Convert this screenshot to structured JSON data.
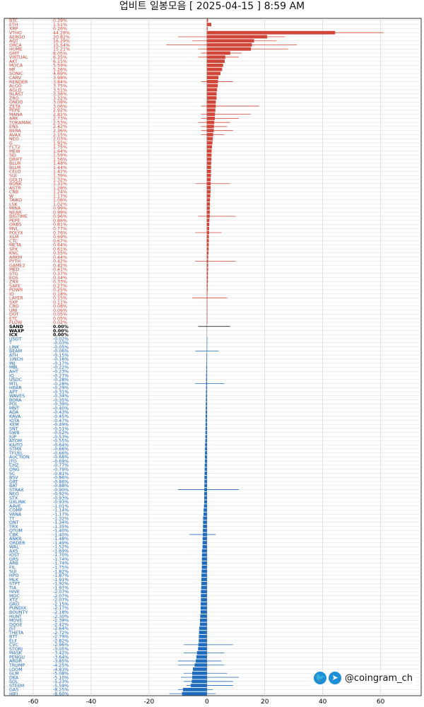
{
  "chart_data": {
    "type": "bar",
    "orientation": "horizontal",
    "title": "업비트 일봉모음 [ 2025-04-15 ]  8:59 AM",
    "xlim": [
      -70,
      74
    ],
    "xticks": [
      -60,
      -40,
      -20,
      0,
      20,
      40,
      60
    ],
    "grid": true,
    "colors": {
      "up": "#d0473a",
      "flat": "#000000",
      "down": "#1f6bbd"
    },
    "rows": [
      {
        "name": "BTC",
        "value": 0.39,
        "label": "0.39%"
      },
      {
        "name": "ETH",
        "value": 1.51,
        "label": "1.51%"
      },
      {
        "name": "XRP",
        "value": 0.26,
        "label": "0.26%"
      },
      {
        "name": "VTHO",
        "value": 44.28,
        "label": "44.28%"
      },
      {
        "name": "AERGO",
        "value": 20.82,
        "label": "20.82%"
      },
      {
        "name": "AQT",
        "value": 16.29,
        "label": "16.29%"
      },
      {
        "name": "ORCA",
        "value": 15.54,
        "label": "15.54%"
      },
      {
        "name": "HUME",
        "value": 15.21,
        "label": "15.21%"
      },
      {
        "name": "GMT",
        "value": 8.05,
        "label": "8.05%"
      },
      {
        "name": "VIRTUAL",
        "value": 6.35,
        "label": "6.35%"
      },
      {
        "name": "AKT",
        "value": 6.15,
        "label": "6.15%"
      },
      {
        "name": "MOCA",
        "value": 5.59,
        "label": "5.59%"
      },
      {
        "name": "MF",
        "value": 5.26,
        "label": "5.26%"
      },
      {
        "name": "SONIC",
        "value": 4.69,
        "label": "4.69%"
      },
      {
        "name": "CARV",
        "value": 3.98,
        "label": "3.98%"
      },
      {
        "name": "RENDER",
        "value": 3.84,
        "label": "3.84%"
      },
      {
        "name": "ALGO",
        "value": 3.75,
        "label": "3.75%"
      },
      {
        "name": "AGLD",
        "value": 3.51,
        "label": "3.51%"
      },
      {
        "name": "BLAST",
        "value": 3.36,
        "label": "3.36%"
      },
      {
        "name": "ZRO",
        "value": 3.32,
        "label": "3.32%"
      },
      {
        "name": "ONDO",
        "value": 3.08,
        "label": "3.08%"
      },
      {
        "name": "ZETA",
        "value": 3.06,
        "label": "3.06%"
      },
      {
        "name": "PEPE",
        "value": 2.92,
        "label": "2.92%"
      },
      {
        "name": "MANA",
        "value": 2.81,
        "label": "2.81%"
      },
      {
        "name": "ARK",
        "value": 2.73,
        "label": "2.73%"
      },
      {
        "name": "TOKAMAK",
        "value": 2.53,
        "label": "2.53%"
      },
      {
        "name": "ENS",
        "value": 2.42,
        "label": "2.42%"
      },
      {
        "name": "BERA",
        "value": 2.36,
        "label": "2.36%"
      },
      {
        "name": "AVAX",
        "value": 2.15,
        "label": "2.15%"
      },
      {
        "name": "NEO",
        "value": 2.03,
        "label": "2.03%"
      },
      {
        "name": "G",
        "value": 1.92,
        "label": "1.92%"
      },
      {
        "name": "FCT2",
        "value": 1.75,
        "label": "1.75%"
      },
      {
        "name": "MEW",
        "value": 1.64,
        "label": "1.64%"
      },
      {
        "name": "SEI",
        "value": 1.59,
        "label": "1.59%"
      },
      {
        "name": "DRIFT",
        "value": 1.56,
        "label": "1.56%"
      },
      {
        "name": "BLUR",
        "value": 1.48,
        "label": "1.48%"
      },
      {
        "name": "BLUR",
        "value": 1.44,
        "label": "1.44%"
      },
      {
        "name": "CELO",
        "value": 1.42,
        "label": "1.42%"
      },
      {
        "name": "SUI",
        "value": 1.39,
        "label": "1.39%"
      },
      {
        "name": "GOLD",
        "value": 1.32,
        "label": "1.32%"
      },
      {
        "name": "BONK",
        "value": 1.31,
        "label": "1.31%"
      },
      {
        "name": "ASTR",
        "value": 1.28,
        "label": "1.28%"
      },
      {
        "name": "CRB",
        "value": 1.24,
        "label": "1.24%"
      },
      {
        "name": "W",
        "value": 1.17,
        "label": "1.17%"
      },
      {
        "name": "TAIKO",
        "value": 1.06,
        "label": "1.06%"
      },
      {
        "name": "LSK",
        "value": 1.02,
        "label": "1.02%"
      },
      {
        "name": "MINA",
        "value": 0.99,
        "label": "0.99%"
      },
      {
        "name": "NEAR",
        "value": 0.99,
        "label": "0.99%"
      },
      {
        "name": "BIGTIME",
        "value": 0.96,
        "label": "0.96%"
      },
      {
        "name": "PEPE",
        "value": 0.86,
        "label": "0.86%"
      },
      {
        "name": "ORBS",
        "value": 0.81,
        "label": "0.81%"
      },
      {
        "name": "MVL",
        "value": 0.77,
        "label": "0.77%"
      },
      {
        "name": "POLYX",
        "value": 0.76,
        "label": "0.76%"
      },
      {
        "name": "XLM",
        "value": 0.69,
        "label": "0.69%"
      },
      {
        "name": "CTC",
        "value": 0.67,
        "label": "0.67%"
      },
      {
        "name": "META",
        "value": 0.64,
        "label": "0.64%"
      },
      {
        "name": "SPX",
        "value": 0.61,
        "label": "0.61%"
      },
      {
        "name": "KNC",
        "value": 0.55,
        "label": "0.55%"
      },
      {
        "name": "ARKM",
        "value": 0.44,
        "label": "0.44%"
      },
      {
        "name": "PYTH",
        "value": 0.42,
        "label": "0.42%"
      },
      {
        "name": "GAME2",
        "value": 0.42,
        "label": "0.42%"
      },
      {
        "name": "MED",
        "value": 0.41,
        "label": "0.41%"
      },
      {
        "name": "STG",
        "value": 0.37,
        "label": "0.37%"
      },
      {
        "name": "EOS",
        "value": 0.34,
        "label": "0.34%"
      },
      {
        "name": "ZRX",
        "value": 0.33,
        "label": "0.33%"
      },
      {
        "name": "SAFE",
        "value": 0.27,
        "label": "0.27%"
      },
      {
        "name": "POWR",
        "value": 0.25,
        "label": "0.25%"
      },
      {
        "name": "ID",
        "value": 0.18,
        "label": "0.18%"
      },
      {
        "name": "LAYER",
        "value": 0.15,
        "label": "0.15%"
      },
      {
        "name": "SXP",
        "value": 0.11,
        "label": "0.11%"
      },
      {
        "name": "CRO",
        "value": 0.08,
        "label": "0.08%"
      },
      {
        "name": "UNI",
        "value": 0.06,
        "label": "0.06%"
      },
      {
        "name": "DOT",
        "value": 0.05,
        "label": "0.05%"
      },
      {
        "name": "ETC",
        "value": 0.05,
        "label": "0.05%"
      },
      {
        "name": "FLOW",
        "value": 0.02,
        "label": "0.02%"
      },
      {
        "name": "SAND",
        "value": 0.0,
        "label": "0.00%"
      },
      {
        "name": "WAXP",
        "value": 0.0,
        "label": "0.00%"
      },
      {
        "name": "ICX",
        "value": 0.0,
        "label": "0.00%"
      },
      {
        "name": "USDT",
        "value": -0.02,
        "label": "-0.02%"
      },
      {
        "name": "T",
        "value": -0.03,
        "label": "-0.03%"
      },
      {
        "name": "LINK",
        "value": -0.05,
        "label": "-0.05%"
      },
      {
        "name": "BEAM",
        "value": -0.06,
        "label": "-0.06%"
      },
      {
        "name": "ATH",
        "value": -0.15,
        "label": "-0.15%"
      },
      {
        "name": "1INCH",
        "value": -0.16,
        "label": "-0.16%"
      },
      {
        "name": "INJ",
        "value": -0.17,
        "label": "-0.17%"
      },
      {
        "name": "MBL",
        "value": -0.22,
        "label": "-0.22%"
      },
      {
        "name": "AHT",
        "value": -0.23,
        "label": "-0.23%"
      },
      {
        "name": "IQ",
        "value": -0.27,
        "label": "-0.27%"
      },
      {
        "name": "USDC",
        "value": -0.28,
        "label": "-0.28%"
      },
      {
        "name": "MTL",
        "value": -0.28,
        "label": "-0.28%"
      },
      {
        "name": "HBAR",
        "value": -0.29,
        "label": "-0.29%"
      },
      {
        "name": "APT",
        "value": -0.31,
        "label": "-0.31%"
      },
      {
        "name": "WAVES",
        "value": -0.34,
        "label": "-0.34%"
      },
      {
        "name": "BORA",
        "value": -0.35,
        "label": "-0.35%"
      },
      {
        "name": "POL",
        "value": -0.39,
        "label": "-0.39%"
      },
      {
        "name": "MNT",
        "value": -0.4,
        "label": "-0.40%"
      },
      {
        "name": "ADA",
        "value": -0.43,
        "label": "-0.43%"
      },
      {
        "name": "KAVA",
        "value": -0.45,
        "label": "-0.45%"
      },
      {
        "name": "IOTA",
        "value": -0.47,
        "label": "-0.47%"
      },
      {
        "name": "XEM",
        "value": -0.49,
        "label": "-0.49%"
      },
      {
        "name": "SNT",
        "value": -0.51,
        "label": "-0.51%"
      },
      {
        "name": "SWB",
        "value": -0.52,
        "label": "-0.52%"
      },
      {
        "name": "JUP",
        "value": -0.53,
        "label": "-0.53%"
      },
      {
        "name": "ATOM",
        "value": -0.55,
        "label": "-0.55%"
      },
      {
        "name": "KAITO",
        "value": -0.64,
        "label": "-0.64%"
      },
      {
        "name": "STMX",
        "value": -0.66,
        "label": "-0.66%"
      },
      {
        "name": "TFUEL",
        "value": -0.66,
        "label": "-0.66%"
      },
      {
        "name": "AUCTION",
        "value": -0.68,
        "label": "-0.68%"
      },
      {
        "name": "JTO",
        "value": -0.69,
        "label": "-0.69%"
      },
      {
        "name": "CHZ",
        "value": -0.77,
        "label": "-0.77%"
      },
      {
        "name": "ONG",
        "value": -0.79,
        "label": "-0.79%"
      },
      {
        "name": "SC",
        "value": -0.81,
        "label": "-0.81%"
      },
      {
        "name": "BSV",
        "value": -0.86,
        "label": "-0.86%"
      },
      {
        "name": "GRT",
        "value": -0.86,
        "label": "-0.86%"
      },
      {
        "name": "BAT",
        "value": -0.88,
        "label": "-0.88%"
      },
      {
        "name": "STRAX",
        "value": -0.9,
        "label": "-0.90%"
      },
      {
        "name": "NEO",
        "value": -0.92,
        "label": "-0.92%"
      },
      {
        "name": "STX",
        "value": -0.93,
        "label": "-0.93%"
      },
      {
        "name": "UXLINK",
        "value": -0.93,
        "label": "-0.93%"
      },
      {
        "name": "AAVE",
        "value": -1.01,
        "label": "-1.01%"
      },
      {
        "name": "COMP",
        "value": -1.14,
        "label": "-1.14%"
      },
      {
        "name": "VANA",
        "value": -1.17,
        "label": "-1.17%"
      },
      {
        "name": "TT",
        "value": -1.32,
        "label": "-1.32%"
      },
      {
        "name": "ONT",
        "value": -1.34,
        "label": "-1.34%"
      },
      {
        "name": "TRX",
        "value": -1.35,
        "label": "-1.35%"
      },
      {
        "name": "QTUM",
        "value": -1.4,
        "label": "-1.40%"
      },
      {
        "name": "CBK",
        "value": -1.4,
        "label": "-1.40%"
      },
      {
        "name": "ANKR",
        "value": -1.48,
        "label": "-1.48%"
      },
      {
        "name": "ORDER",
        "value": -1.49,
        "label": "-1.49%"
      },
      {
        "name": "WAL",
        "value": -1.52,
        "label": "-1.52%"
      },
      {
        "name": "AXS",
        "value": -1.69,
        "label": "-1.69%"
      },
      {
        "name": "IOST",
        "value": -1.7,
        "label": "-1.70%"
      },
      {
        "name": "GRS",
        "value": -1.74,
        "label": "-1.74%"
      },
      {
        "name": "ARB",
        "value": -1.74,
        "label": "-1.74%"
      },
      {
        "name": "FIL",
        "value": -1.75,
        "label": "-1.75%"
      },
      {
        "name": "SUI",
        "value": -1.82,
        "label": "-1.82%"
      },
      {
        "name": "HPO",
        "value": -1.87,
        "label": "-1.87%"
      },
      {
        "name": "MLK",
        "value": -1.91,
        "label": "-1.91%"
      },
      {
        "name": "STPT",
        "value": -1.92,
        "label": "-1.92%"
      },
      {
        "name": "TIA",
        "value": -1.97,
        "label": "-1.97%"
      },
      {
        "name": "HIVE",
        "value": -2.07,
        "label": "-2.07%"
      },
      {
        "name": "MOC",
        "value": -2.07,
        "label": "-2.07%"
      },
      {
        "name": "XTZ",
        "value": -2.07,
        "label": "-2.07%"
      },
      {
        "name": "GRO",
        "value": -2.15,
        "label": "-2.15%"
      },
      {
        "name": "PUNDIX",
        "value": -2.17,
        "label": "-2.17%"
      },
      {
        "name": "BOUNTY",
        "value": -2.18,
        "label": "-2.18%"
      },
      {
        "name": "HUNT",
        "value": -2.3,
        "label": "-2.30%"
      },
      {
        "name": "MOVE",
        "value": -2.39,
        "label": "-2.39%"
      },
      {
        "name": "DOGE",
        "value": -2.42,
        "label": "-2.42%"
      },
      {
        "name": "JST",
        "value": -2.64,
        "label": "-2.64%"
      },
      {
        "name": "THETA",
        "value": -2.72,
        "label": "-2.72%"
      },
      {
        "name": "BTT",
        "value": -2.79,
        "label": "-2.79%"
      },
      {
        "name": "ELF",
        "value": -2.82,
        "label": "-2.82%"
      },
      {
        "name": "CVC",
        "value": -2.96,
        "label": "-2.96%"
      },
      {
        "name": "STORJ",
        "value": -3.05,
        "label": "-3.05%"
      },
      {
        "name": "MASK",
        "value": -3.42,
        "label": "-3.42%"
      },
      {
        "name": "PENGU",
        "value": -3.64,
        "label": "-3.64%"
      },
      {
        "name": "ARDR",
        "value": -3.85,
        "label": "-3.85%"
      },
      {
        "name": "TRUMP",
        "value": -4.25,
        "label": "-4.25%"
      },
      {
        "name": "LOOM",
        "value": -4.83,
        "label": "-4.83%"
      },
      {
        "name": "GLM",
        "value": -5.08,
        "label": "-5.08%"
      },
      {
        "name": "DKA",
        "value": -5.1,
        "label": "-5.10%"
      },
      {
        "name": "SOL",
        "value": -5.23,
        "label": "-5.23%"
      },
      {
        "name": "STEEM",
        "value": -5.59,
        "label": "-5.59%"
      },
      {
        "name": "GAS",
        "value": -8.25,
        "label": "-8.25%"
      },
      {
        "name": "HIFI",
        "value": -8.6,
        "label": "-8.60%"
      }
    ],
    "ranges": {
      "VTHO": [
        0,
        61
      ],
      "AERGO": [
        -10,
        27
      ],
      "AQT": [
        -5,
        24
      ],
      "ORCA": [
        -14,
        31
      ],
      "HUME": [
        -3,
        28
      ],
      "GMT": [
        -2,
        12
      ],
      "VIRTUAL": [
        -3,
        11
      ],
      "RENDER": [
        -2,
        9
      ],
      "ZETA": [
        -2,
        18
      ],
      "MANA": [
        -2,
        15
      ],
      "ARK": [
        -2,
        11
      ],
      "TOKAMAK": [
        -3,
        8
      ],
      "ENS": [
        -2,
        7
      ],
      "BERA": [
        -2,
        9
      ],
      "AVAX": [
        -2,
        6
      ],
      "BONK": [
        -4,
        8
      ],
      "BIGTIME": [
        -3,
        10
      ],
      "POLYX": [
        -4,
        5
      ],
      "PYTH": [
        -4,
        10
      ],
      "LAYER": [
        -5,
        7
      ],
      "SAND": [
        -3,
        8
      ],
      "BEAM": [
        -4,
        4
      ],
      "MTL": [
        -4,
        6
      ],
      "STRAX": [
        -10,
        11
      ],
      "CBK": [
        -6,
        3
      ],
      "STEEM": [
        -7,
        9
      ],
      "GAS": [
        -10,
        2
      ],
      "HIFI": [
        -13,
        3
      ],
      "SOL": [
        -8,
        9
      ],
      "DKA": [
        -9,
        11
      ],
      "GLM": [
        -8,
        7
      ],
      "MASK": [
        -8,
        6
      ],
      "CVC": [
        -8,
        9
      ],
      "TRUMP": [
        -10,
        6
      ],
      "ARDR": [
        -10,
        5
      ]
    }
  },
  "watermark": {
    "handle": "@coingram_ch",
    "icons": [
      "twitter-icon",
      "telegram-icon"
    ]
  }
}
